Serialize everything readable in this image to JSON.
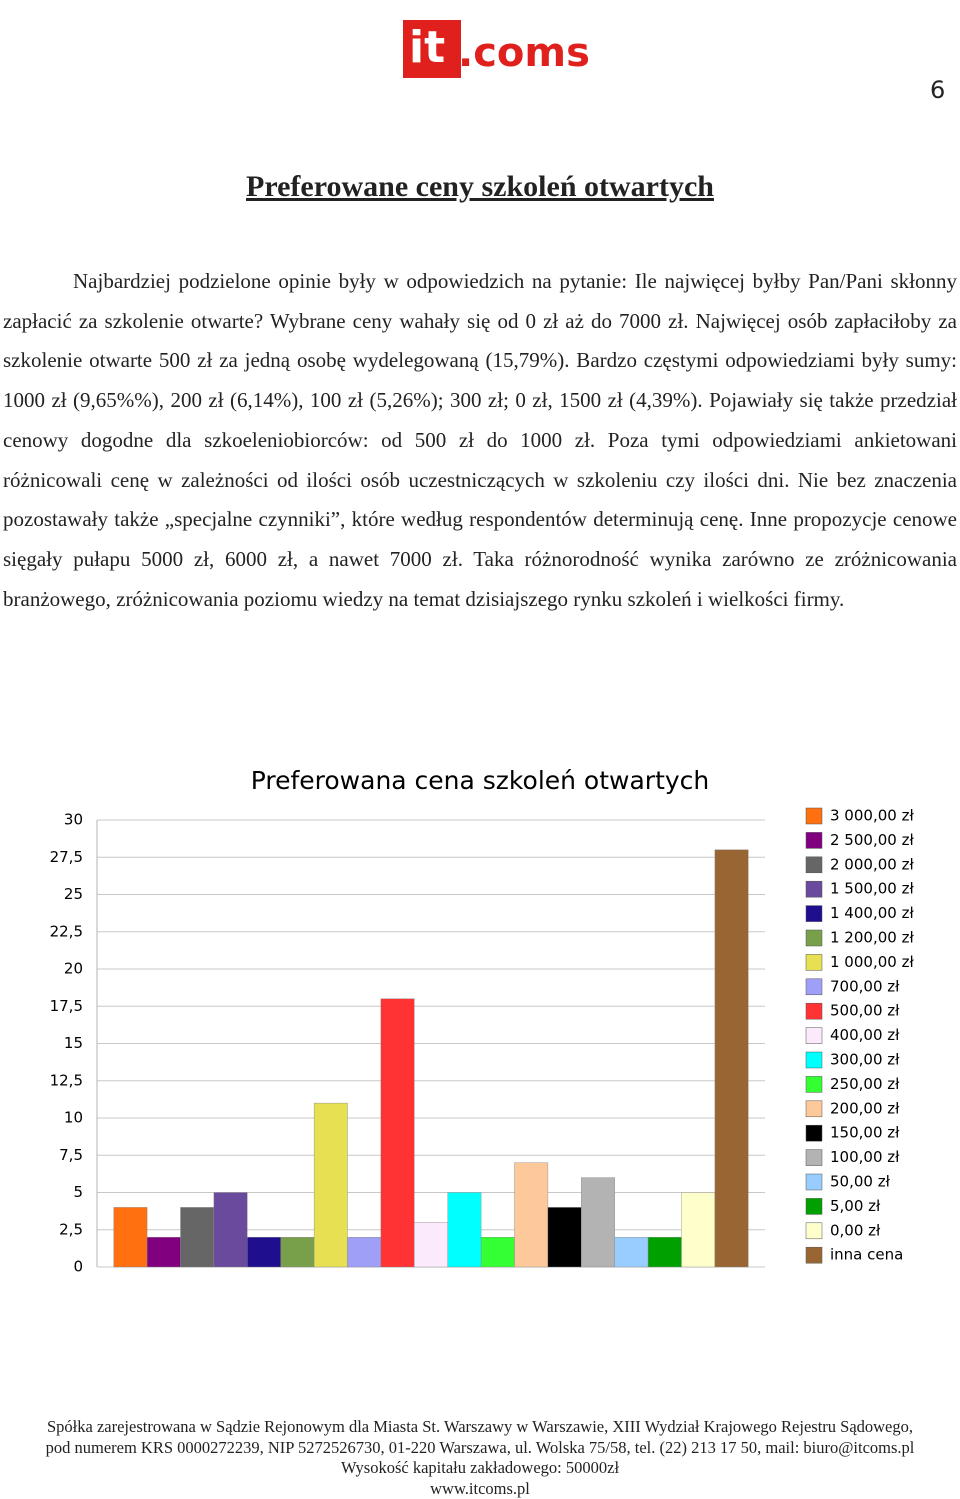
{
  "header": {
    "logo_left": "it",
    "logo_right": ".coms",
    "page_number": "6"
  },
  "heading": "Preferowane ceny szkoleń otwartych",
  "paragraph": "Najbardziej podzielone opinie były w odpowiedzich na pytanie: Ile najwięcej byłby Pan/Pani skłonny zapłacić za szkolenie otwarte? Wybrane ceny wahały się od 0 zł aż do 7000 zł. Najwięcej osób zapłaciłoby za szkolenie otwarte 500 zł za jedną osobę wydelegowaną (15,79%). Bardzo częstymi odpowiedziami były sumy: 1000 zł (9,65%%), 200 zł (6,14%), 100 zł (5,26%); 300 zł; 0 zł, 1500 zł (4,39%). Pojawiały się także przedział cenowy dogodne dla szkoeleniobiorców: od 500 zł do 1000 zł. Poza tymi odpowiedziami ankietowani różnicowali cenę w zależności od ilości osób uczestniczących w szkoleniu czy ilości dni. Nie bez znaczenia pozostawały także „specjalne czynniki”, które według respondentów determinują cenę. Inne propozycje cenowe sięgały pułapu 5000 zł, 6000 zł, a nawet 7000 zł. Taka różnorodność wynika zarówno ze zróżnicowania branżowego, zróżnicowania poziomu wiedzy na temat dzisiajszego rynku szkoleń i wielkości firmy.",
  "chart_data": {
    "type": "bar",
    "title": "Preferowana cena szkoleń otwartych",
    "categories": [
      null
    ],
    "ylim": [
      0,
      30
    ],
    "yticks": [
      0,
      {
        "value": 2.5,
        "label": "2,5"
      },
      5,
      {
        "value": 7.5,
        "label": "7,5"
      },
      10,
      {
        "value": 12.5,
        "label": "12,5"
      },
      15,
      {
        "value": 17.5,
        "label": "17,5"
      },
      20,
      {
        "value": 22.5,
        "label": "22,5"
      },
      25,
      {
        "value": 27.5,
        "label": "27,5"
      },
      30
    ],
    "grid": true,
    "legend": "right",
    "series": [
      {
        "name": "3 000,00 zł",
        "color": "#ff7010",
        "values": [
          4
        ]
      },
      {
        "name": "2 500,00 zł",
        "color": "#800080",
        "values": [
          2
        ]
      },
      {
        "name": "2 000,00 zł",
        "color": "#666666",
        "values": [
          4
        ]
      },
      {
        "name": "1 500,00 zł",
        "color": "#6a4a9c",
        "values": [
          5
        ]
      },
      {
        "name": "1 400,00 zł",
        "color": "#1f0e8e",
        "values": [
          2
        ]
      },
      {
        "name": "1 200,00 zł",
        "color": "#78a04a",
        "values": [
          2
        ]
      },
      {
        "name": "1 000,00 zł",
        "color": "#e6e052",
        "values": [
          11
        ]
      },
      {
        "name": "700,00 zł",
        "color": "#9f9ff7",
        "values": [
          2
        ]
      },
      {
        "name": "500,00 zł",
        "color": "#ff3333",
        "values": [
          18
        ]
      },
      {
        "name": "400,00 zł",
        "color": "#fbeafb",
        "values": [
          3
        ]
      },
      {
        "name": "300,00 zł",
        "color": "#00ffff",
        "values": [
          5
        ]
      },
      {
        "name": "250,00 zł",
        "color": "#33ff33",
        "values": [
          2
        ]
      },
      {
        "name": "200,00 zł",
        "color": "#fdc99a",
        "values": [
          7
        ]
      },
      {
        "name": "150,00 zł",
        "color": "#000000",
        "values": [
          4
        ]
      },
      {
        "name": "100,00 zł",
        "color": "#b3b3b3",
        "values": [
          6
        ]
      },
      {
        "name": "50,00 zł",
        "color": "#99ccff",
        "values": [
          2
        ]
      },
      {
        "name": "5,00 zł",
        "color": "#00a000",
        "values": [
          2
        ]
      },
      {
        "name": "0,00 zł",
        "color": "#ffffcc",
        "values": [
          5
        ]
      },
      {
        "name": "inna cena",
        "color": "#996633",
        "values": [
          28
        ]
      }
    ]
  },
  "footer": [
    "Spółka zarejestrowana w Sądzie Rejonowym dla Miasta St. Warszawy w Warszawie, XIII Wydział Krajowego Rejestru Sądowego,",
    "pod numerem KRS 0000272239, NIP 5272526730, 01-220 Warszawa, ul. Wolska 75/58, tel. (22) 213 17 50, mail: biuro@itcoms.pl",
    "Wysokość kapitału zakładowego: 50000zł",
    "www.itcoms.pl"
  ]
}
